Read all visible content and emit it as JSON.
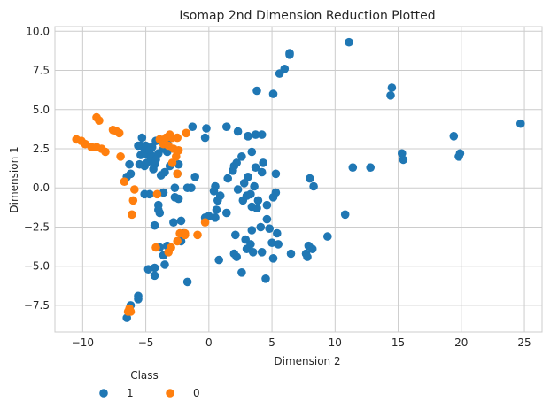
{
  "chart_data": {
    "type": "scatter",
    "title": "Isomap 2nd Dimension Reduction Plotted",
    "xlabel": "Dimension 2",
    "ylabel": "Dimension 1",
    "xlim": [
      -12.2,
      26.4
    ],
    "ylim": [
      -9.2,
      10.3
    ],
    "xticks": [
      -10,
      -5,
      0,
      5,
      10,
      15,
      20,
      25
    ],
    "yticks": [
      -7.5,
      -5.0,
      -2.5,
      0.0,
      2.5,
      5.0,
      7.5,
      10.0
    ],
    "xtick_labels": [
      "−10",
      "−5",
      "0",
      "5",
      "10",
      "15",
      "20",
      "25"
    ],
    "ytick_labels": [
      "−7.5",
      "−5.0",
      "−2.5",
      "0.0",
      "2.5",
      "5.0",
      "7.5",
      "10.0"
    ],
    "grid": true,
    "legend_title": "Class",
    "legend_position": "below-left",
    "series": [
      {
        "name": "1",
        "color": "#1f77b4",
        "points": [
          [
            11.1,
            9.3
          ],
          [
            6.4,
            8.6
          ],
          [
            6.4,
            8.5
          ],
          [
            6.0,
            7.6
          ],
          [
            5.6,
            7.3
          ],
          [
            3.8,
            6.2
          ],
          [
            5.1,
            6.0
          ],
          [
            14.5,
            6.4
          ],
          [
            14.4,
            5.9
          ],
          [
            24.7,
            4.1
          ],
          [
            19.4,
            3.3
          ],
          [
            15.3,
            2.2
          ],
          [
            15.4,
            1.8
          ],
          [
            19.9,
            2.2
          ],
          [
            19.8,
            2.0
          ],
          [
            11.4,
            1.3
          ],
          [
            12.8,
            1.3
          ],
          [
            8.0,
            0.6
          ],
          [
            8.3,
            0.1
          ],
          [
            10.8,
            -1.7
          ],
          [
            9.4,
            -3.1
          ],
          [
            7.9,
            -3.7
          ],
          [
            8.2,
            -3.9
          ],
          [
            7.7,
            -4.2
          ],
          [
            7.8,
            -4.4
          ],
          [
            6.5,
            -4.2
          ],
          [
            5.5,
            -3.6
          ],
          [
            5.0,
            -3.5
          ],
          [
            5.1,
            -4.5
          ],
          [
            4.5,
            -5.8
          ],
          [
            2.6,
            -5.4
          ],
          [
            4.2,
            -4.1
          ],
          [
            3.5,
            -4.1
          ],
          [
            3.0,
            -3.9
          ],
          [
            3.3,
            -3.6
          ],
          [
            2.9,
            -3.3
          ],
          [
            3.4,
            -2.7
          ],
          [
            4.1,
            -2.5
          ],
          [
            4.6,
            -2.0
          ],
          [
            4.8,
            -2.6
          ],
          [
            5.4,
            -2.9
          ],
          [
            3.4,
            -1.2
          ],
          [
            3.8,
            -1.3
          ],
          [
            4.6,
            -1.1
          ],
          [
            3.9,
            -0.8
          ],
          [
            3.0,
            -0.5
          ],
          [
            2.7,
            -0.8
          ],
          [
            3.3,
            -0.4
          ],
          [
            5.1,
            -0.6
          ],
          [
            5.3,
            -0.3
          ],
          [
            2.3,
            -0.1
          ],
          [
            2.8,
            0.3
          ],
          [
            3.6,
            0.1
          ],
          [
            3.1,
            0.7
          ],
          [
            4.2,
            1.0
          ],
          [
            3.7,
            1.3
          ],
          [
            4.3,
            1.6
          ],
          [
            5.3,
            0.9
          ],
          [
            1.5,
            0.6
          ],
          [
            1.9,
            1.1
          ],
          [
            2.0,
            1.4
          ],
          [
            2.2,
            1.6
          ],
          [
            2.6,
            2.0
          ],
          [
            3.4,
            2.3
          ],
          [
            3.1,
            3.3
          ],
          [
            3.7,
            3.4
          ],
          [
            4.2,
            3.4
          ],
          [
            2.3,
            3.6
          ],
          [
            1.4,
            3.9
          ],
          [
            3.1,
            3.3
          ],
          [
            0.5,
            0.1
          ],
          [
            0.4,
            -0.2
          ],
          [
            0.9,
            -0.5
          ],
          [
            0.7,
            -0.8
          ],
          [
            0.6,
            -1.4
          ],
          [
            1.4,
            -1.6
          ],
          [
            0.5,
            -1.9
          ],
          [
            0.0,
            -1.8
          ],
          [
            -0.3,
            -1.9
          ],
          [
            0.8,
            -4.6
          ],
          [
            2.1,
            -3.0
          ],
          [
            2.0,
            -4.2
          ],
          [
            2.2,
            -4.4
          ],
          [
            -0.3,
            3.2
          ],
          [
            -0.2,
            3.8
          ],
          [
            -1.3,
            3.9
          ],
          [
            -2.4,
            1.5
          ],
          [
            -2.5,
            0.9
          ],
          [
            -3.1,
            1.4
          ],
          [
            -1.1,
            0.7
          ],
          [
            -1.4,
            0.0
          ],
          [
            -1.7,
            0.0
          ],
          [
            -2.7,
            0.0
          ],
          [
            -2.7,
            -0.6
          ],
          [
            -3.6,
            -0.3
          ],
          [
            -4.0,
            -1.1
          ],
          [
            -3.9,
            -1.6
          ],
          [
            -4.3,
            -2.4
          ],
          [
            -2.8,
            -2.2
          ],
          [
            -2.2,
            -2.1
          ],
          [
            -2.0,
            -2.9
          ],
          [
            -2.2,
            -3.4
          ],
          [
            -3.3,
            -3.7
          ],
          [
            -3.6,
            -4.3
          ],
          [
            -3.5,
            -4.9
          ],
          [
            -4.3,
            -5.1
          ],
          [
            -4.8,
            -5.2
          ],
          [
            -4.3,
            -5.6
          ],
          [
            -1.7,
            -6.0
          ],
          [
            -5.6,
            -6.9
          ],
          [
            -5.6,
            -7.1
          ],
          [
            -6.2,
            -7.5
          ],
          [
            -6.5,
            -8.3
          ],
          [
            -5.1,
            -0.4
          ],
          [
            -4.7,
            -0.4
          ],
          [
            -6.5,
            0.7
          ],
          [
            -6.2,
            0.9
          ],
          [
            -6.3,
            1.5
          ],
          [
            -5.5,
            1.5
          ],
          [
            -5.1,
            1.4
          ],
          [
            -4.9,
            1.6
          ],
          [
            -4.4,
            1.2
          ],
          [
            -4.6,
            2.1
          ],
          [
            -4.0,
            2.2
          ],
          [
            -3.3,
            2.3
          ],
          [
            -3.6,
            2.5
          ],
          [
            -3.3,
            2.9
          ],
          [
            -3.5,
            3.1
          ],
          [
            -4.2,
            3.0
          ],
          [
            -4.5,
            2.6
          ],
          [
            -5.4,
            2.7
          ],
          [
            -5.1,
            2.5
          ],
          [
            -5.4,
            2.1
          ],
          [
            -5.0,
            2.2
          ],
          [
            -5.0,
            2.7
          ],
          [
            -5.6,
            2.7
          ],
          [
            -5.3,
            3.2
          ],
          [
            -4.7,
            2.4
          ],
          [
            -4.3,
            1.5
          ],
          [
            -4.6,
            1.9
          ],
          [
            -4.2,
            1.8
          ],
          [
            -3.5,
            1.0
          ],
          [
            -3.8,
            0.8
          ],
          [
            -2.4,
            -0.7
          ],
          [
            -3.9,
            -3.8
          ],
          [
            -4.0,
            -1.4
          ]
        ]
      },
      {
        "name": "0",
        "color": "#ff7f0e",
        "points": [
          [
            -8.9,
            4.5
          ],
          [
            -8.7,
            4.3
          ],
          [
            -7.6,
            3.7
          ],
          [
            -7.3,
            3.6
          ],
          [
            -7.1,
            3.5
          ],
          [
            -10.5,
            3.1
          ],
          [
            -10.1,
            3.0
          ],
          [
            -9.8,
            2.8
          ],
          [
            -9.3,
            2.6
          ],
          [
            -8.9,
            2.6
          ],
          [
            -8.5,
            2.5
          ],
          [
            -8.2,
            2.3
          ],
          [
            -7.0,
            2.0
          ],
          [
            -3.9,
            3.1
          ],
          [
            -3.7,
            3.0
          ],
          [
            -3.4,
            3.2
          ],
          [
            -3.1,
            3.4
          ],
          [
            -2.9,
            3.2
          ],
          [
            -2.5,
            3.2
          ],
          [
            -1.8,
            3.5
          ],
          [
            -3.6,
            2.8
          ],
          [
            -3.2,
            2.7
          ],
          [
            -2.8,
            2.5
          ],
          [
            -2.4,
            2.4
          ],
          [
            -2.6,
            2.0
          ],
          [
            -2.9,
            1.6
          ],
          [
            -6.7,
            0.4
          ],
          [
            -5.9,
            -0.1
          ],
          [
            -6.0,
            -0.8
          ],
          [
            -6.1,
            -1.7
          ],
          [
            -4.1,
            -0.4
          ],
          [
            -2.5,
            0.9
          ],
          [
            -2.3,
            -2.9
          ],
          [
            -1.9,
            -2.9
          ],
          [
            -1.9,
            -3.0
          ],
          [
            -0.9,
            -3.0
          ],
          [
            -0.3,
            -2.2
          ],
          [
            -2.5,
            -3.4
          ],
          [
            -3.0,
            -3.8
          ],
          [
            -3.2,
            -4.1
          ],
          [
            -4.2,
            -3.8
          ],
          [
            -6.3,
            -7.7
          ],
          [
            -6.2,
            -7.9
          ],
          [
            -6.4,
            -7.9
          ]
        ]
      }
    ]
  }
}
